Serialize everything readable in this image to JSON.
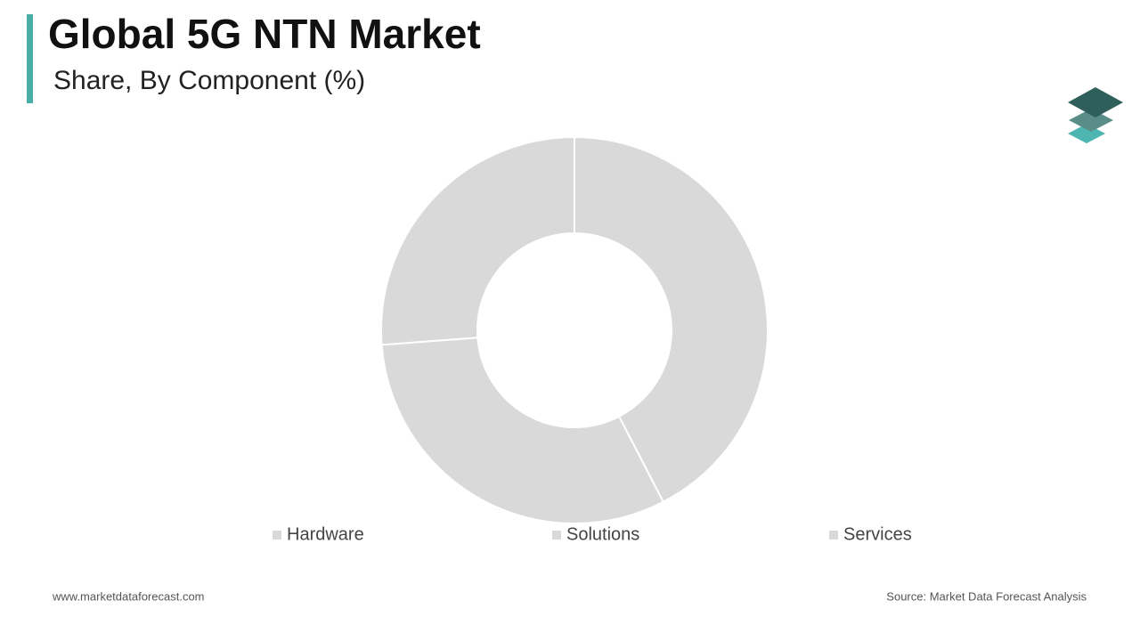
{
  "chart_data": {
    "type": "donut",
    "title": "Global 5G NTN Market",
    "subtitle": "Share, By Component (%)",
    "categories": [
      "Hardware",
      "Solutions",
      "Services"
    ],
    "values": [
      42.4,
      31.4,
      26.2
    ],
    "colors": [
      "#d9d9d9",
      "#d9d9d9",
      "#d9d9d9"
    ]
  },
  "footer": {
    "website": "www.marketdataforecast.com",
    "source": "Source: Market Data Forecast Analysis"
  }
}
